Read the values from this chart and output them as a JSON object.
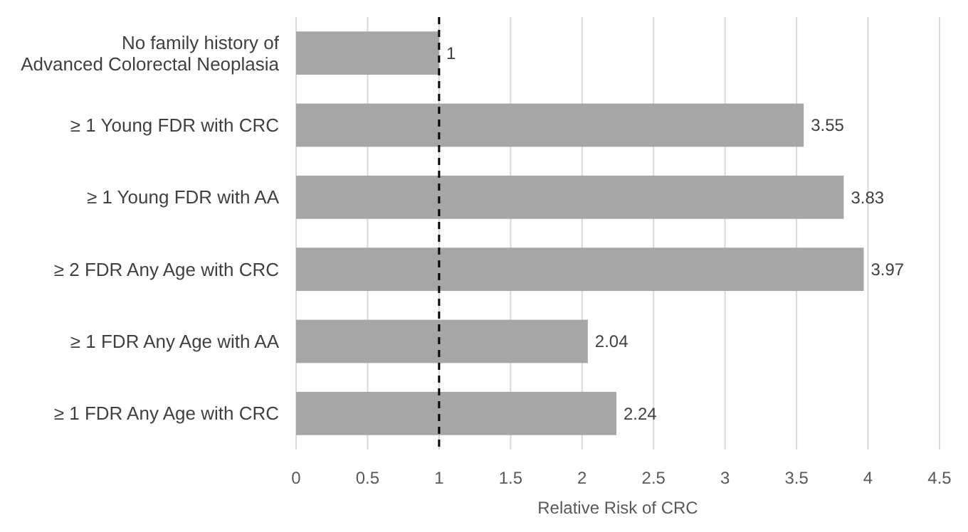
{
  "chart_data": {
    "type": "bar",
    "orientation": "horizontal",
    "xlabel": "Relative Risk of CRC",
    "categories": [
      "No family history of\nAdvanced Colorectal Neoplasia",
      "≥ 1 Young FDR with CRC",
      "≥ 1 Young FDR with AA",
      "≥ 2 FDR Any Age with CRC",
      "≥ 1 FDR Any Age with AA",
      "≥ 1 FDR Any Age with CRC"
    ],
    "values": [
      1,
      3.55,
      3.83,
      3.97,
      2.04,
      2.24
    ],
    "color": "#a6a6a6",
    "xlim": [
      0,
      4.5
    ],
    "xticks": [
      0,
      0.5,
      1,
      1.5,
      2,
      2.5,
      3,
      3.5,
      4,
      4.5
    ],
    "grid": "x",
    "data_labels": true,
    "ref_lines": [
      {
        "axis": "x",
        "value": 1,
        "color": "#000000",
        "line_style": "dashed"
      }
    ]
  }
}
